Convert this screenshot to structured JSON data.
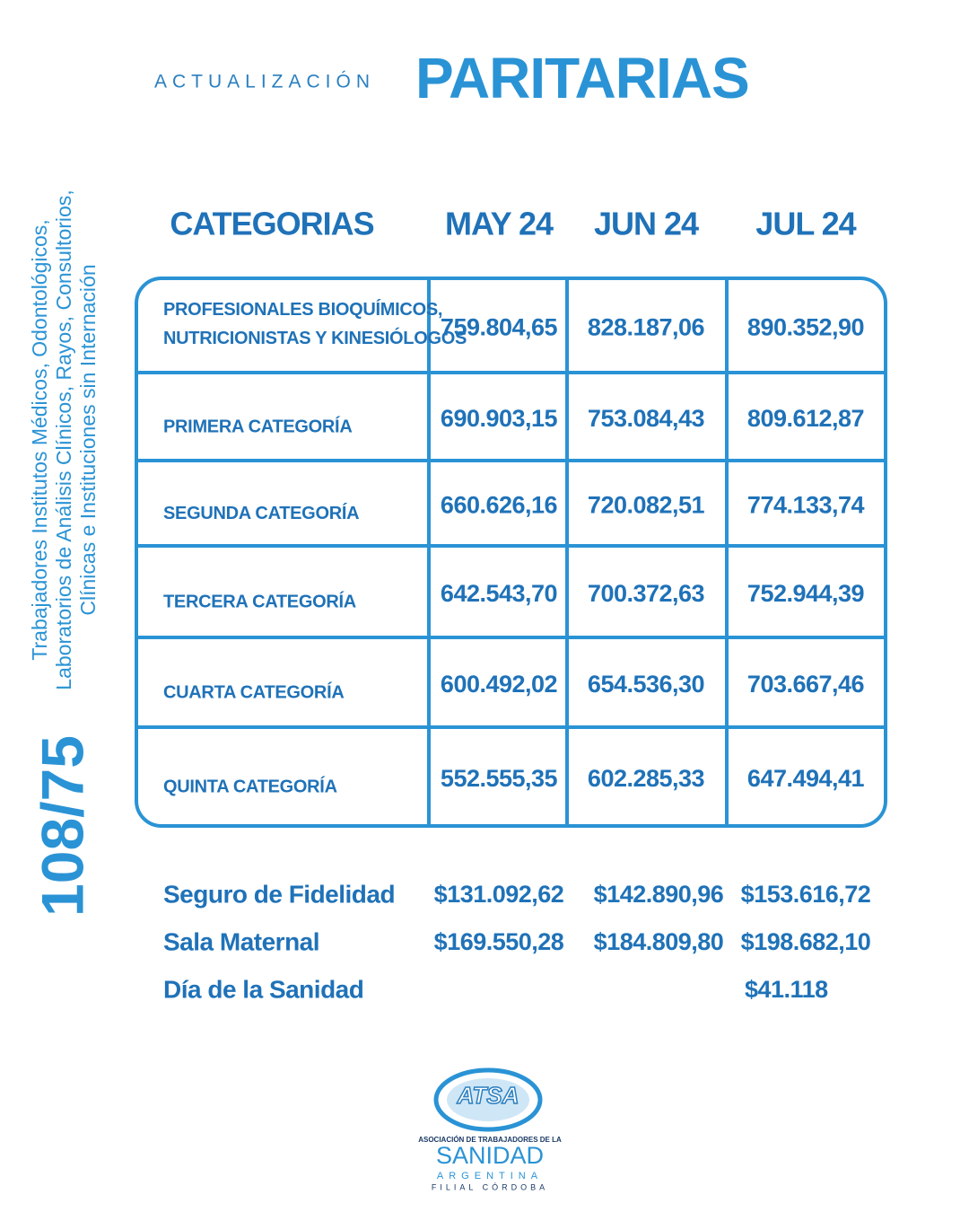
{
  "header": {
    "prefix": "ACTUALIZACIÓN",
    "title": "PARITARIAS"
  },
  "side": {
    "code": "108/75",
    "lines": [
      "Trabajadores Institutos Médicos, Odontológicos,",
      "Laboratorios de Análisis Clínicos, Rayos, Consultorios,",
      "Clínicas e Instituciones sin Internación"
    ]
  },
  "table": {
    "columns": [
      "CATEGORIAS",
      "MAY 24",
      "JUN 24",
      "JUL 24"
    ],
    "rows": [
      {
        "label": [
          "PROFESIONALES BIOQUÍMICOS,",
          "NUTRICIONISTAS Y KINESIÓLOGOS"
        ],
        "values": [
          "759.804,65",
          "828.187,06",
          "890.352,90"
        ]
      },
      {
        "label": [
          "PRIMERA CATEGORÍA"
        ],
        "values": [
          "690.903,15",
          "753.084,43",
          "809.612,87"
        ]
      },
      {
        "label": [
          "SEGUNDA CATEGORÍA"
        ],
        "values": [
          "660.626,16",
          "720.082,51",
          "774.133,74"
        ]
      },
      {
        "label": [
          "TERCERA CATEGORÍA"
        ],
        "values": [
          "642.543,70",
          "700.372,63",
          "752.944,39"
        ]
      },
      {
        "label": [
          "CUARTA CATEGORÍA"
        ],
        "values": [
          "600.492,02",
          "654.536,30",
          "703.667,46"
        ]
      },
      {
        "label": [
          "QUINTA CATEGORÍA"
        ],
        "values": [
          "552.555,35",
          "602.285,33",
          "647.494,41"
        ]
      }
    ]
  },
  "extras": [
    {
      "label": "Seguro de Fidelidad",
      "values": [
        "$131.092,62",
        "$142.890,96",
        "$153.616,72"
      ]
    },
    {
      "label": "Sala Maternal",
      "values": [
        "$169.550,28",
        "$184.809,80",
        "$198.682,10"
      ]
    },
    {
      "label": "Día de la Sanidad",
      "values": [
        null,
        null,
        "$41.118"
      ]
    }
  ],
  "logo": {
    "acronym": "ATSA",
    "line1": "ASOCIACIÓN DE TRABAJADORES DE LA",
    "name": "SANIDAD",
    "country": "ARGENTINA",
    "branch": "FILIAL CÓRDOBA"
  }
}
